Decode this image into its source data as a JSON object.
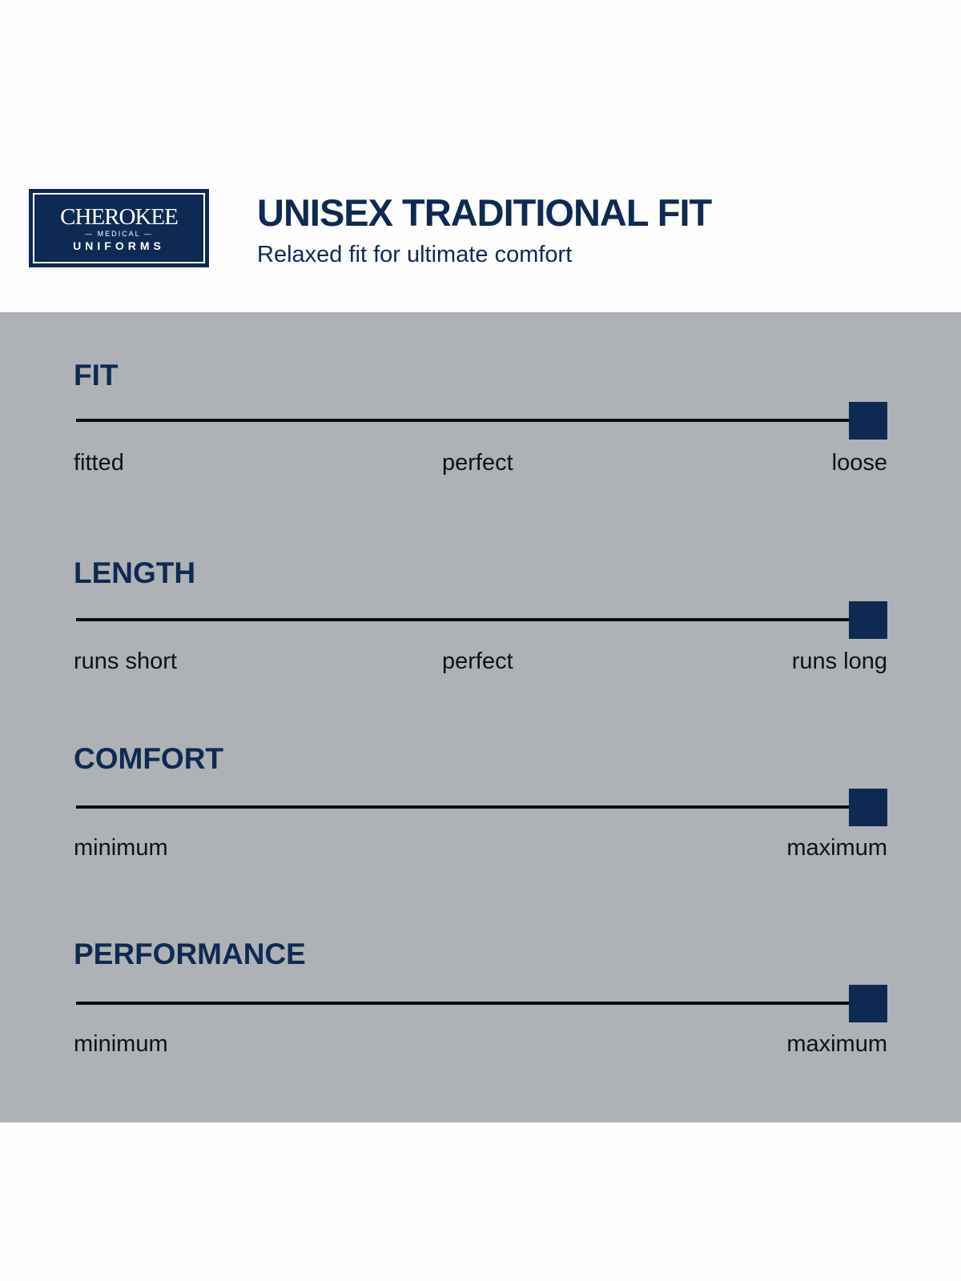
{
  "logo": {
    "brand": "CHEROKEE",
    "sub": "— MEDICAL —",
    "line2": "UNIFORMS"
  },
  "header": {
    "title": "UNISEX TRADITIONAL FIT",
    "subtitle": "Relaxed fit for ultimate comfort"
  },
  "colors": {
    "accent": "#0f2a52",
    "band": "#aeb2b6"
  },
  "ratings": [
    {
      "title": "FIT",
      "value": 1.0,
      "labels": [
        "fitted",
        "perfect",
        "loose"
      ]
    },
    {
      "title": "LENGTH",
      "value": 1.0,
      "labels": [
        "runs short",
        "perfect",
        "runs long"
      ]
    },
    {
      "title": "COMFORT",
      "value": 1.0,
      "labels": [
        "minimum",
        "",
        "maximum"
      ]
    },
    {
      "title": "PERFORMANCE",
      "value": 1.0,
      "labels": [
        "minimum",
        "",
        "maximum"
      ]
    }
  ]
}
